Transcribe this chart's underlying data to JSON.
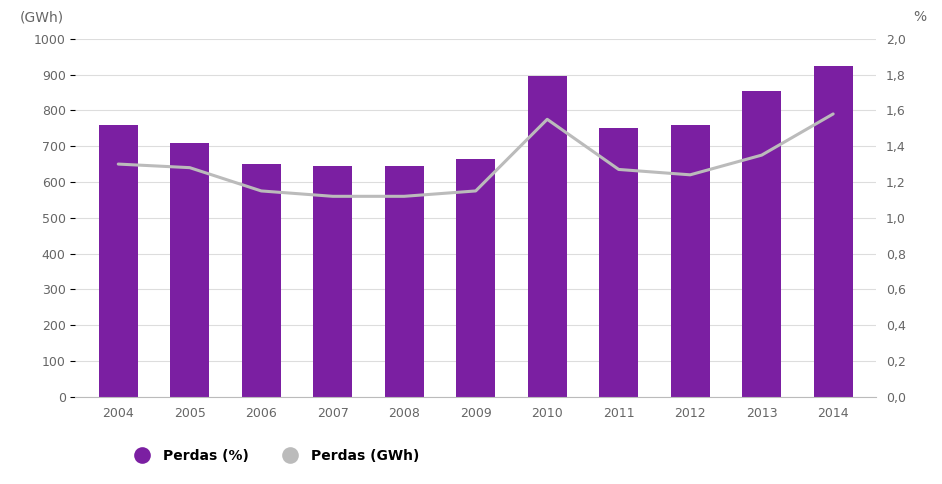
{
  "years": [
    2004,
    2005,
    2006,
    2007,
    2008,
    2009,
    2010,
    2011,
    2012,
    2013,
    2014
  ],
  "gwh_values": [
    760,
    710,
    650,
    645,
    645,
    665,
    895,
    750,
    760,
    855,
    925
  ],
  "pct_values": [
    1.3,
    1.28,
    1.15,
    1.12,
    1.12,
    1.15,
    1.55,
    1.27,
    1.24,
    1.35,
    1.58
  ],
  "bar_color": "#7B1FA2",
  "line_color": "#BBBBBB",
  "background_color": "#FFFFFF",
  "label_left": "(GWh)",
  "label_right": "%",
  "ylim_left": [
    0,
    1000
  ],
  "ylim_right": [
    0.0,
    2.0
  ],
  "yticks_left": [
    0,
    100,
    200,
    300,
    400,
    500,
    600,
    700,
    800,
    900,
    1000
  ],
  "yticks_right": [
    0.0,
    0.2,
    0.4,
    0.6,
    0.8,
    1.0,
    1.2,
    1.4,
    1.6,
    1.8,
    2.0
  ],
  "ytick_labels_right": [
    "0,0",
    "0,2",
    "0,4",
    "0,6",
    "0,8",
    "1,0",
    "1,2",
    "1,4",
    "1,6",
    "1,8",
    "2,0"
  ],
  "ytick_labels_left": [
    "0",
    "100",
    "200",
    "300",
    "400",
    "500",
    "600",
    "700",
    "800",
    "900",
    "1000"
  ],
  "legend_bar_label": "Perdas (%)",
  "legend_line_label": "Perdas (GWh)",
  "bar_width": 0.55,
  "line_width": 2.2,
  "grid_color": "#DDDDDD",
  "tick_color": "#666666",
  "spine_color": "#BBBBBB",
  "label_fontsize": 10,
  "tick_fontsize": 9,
  "legend_fontsize": 10
}
